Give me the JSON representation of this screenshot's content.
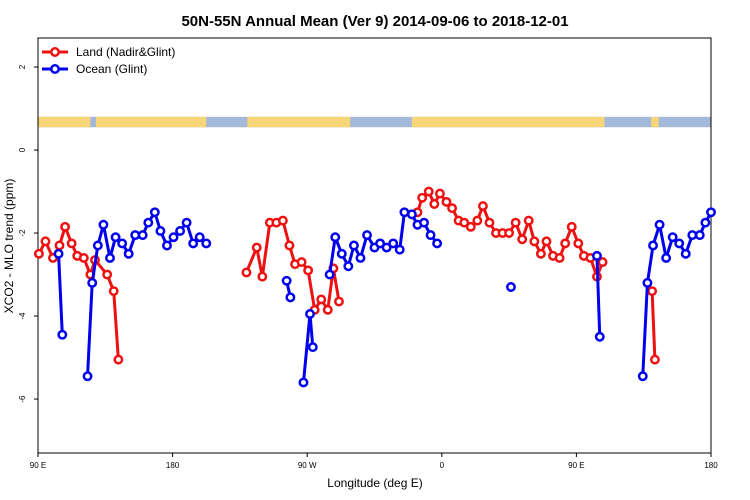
{
  "chart_data": {
    "type": "line",
    "title": "50N-55N Annual Mean (Ver 9)   2014-09-06 to 2018-12-01",
    "xlabel": "Longitude (deg E)",
    "ylabel": "XCO2 - MLO trend (ppm)",
    "xlim": [
      90,
      450
    ],
    "ylim": [
      -7.3,
      2.7
    ],
    "x_ticks": [
      90,
      162,
      234,
      306,
      378,
      450
    ],
    "x_tick_labels": [
      "90 E",
      "180",
      "90 W",
      "0",
      "90 E",
      "180"
    ],
    "y_ticks": [
      -6,
      -4,
      -2,
      0,
      2
    ],
    "y_tick_labels": [
      "-6",
      "-4",
      "-2",
      "0",
      "2"
    ],
    "legend_position": "top-left",
    "land_ocean_strip": {
      "y_range": [
        0.55,
        0.8
      ],
      "land_color": "#F8D678",
      "ocean_color": "#A4B8DA"
    },
    "series": [
      {
        "name": "Land (Nadir&Glint)",
        "color": "#EE1111",
        "segments": [
          [
            [
              90.5,
              -2.5
            ],
            [
              94,
              -2.2
            ],
            [
              98,
              -2.6
            ],
            [
              101.5,
              -2.3
            ],
            [
              104.5,
              -1.85
            ],
            [
              108,
              -2.25
            ],
            [
              111,
              -2.55
            ],
            [
              114.5,
              -2.6
            ],
            [
              118,
              -3.0
            ],
            [
              120.5,
              -2.65
            ],
            [
              127,
              -3.0
            ],
            [
              130.5,
              -3.4
            ],
            [
              133,
              -5.05
            ]
          ],
          [
            [
              201.5,
              -2.95
            ],
            [
              207,
              -2.35
            ],
            [
              210,
              -3.05
            ],
            [
              214,
              -1.75
            ],
            [
              217.5,
              -1.75
            ],
            [
              221,
              -1.7
            ],
            [
              224.5,
              -2.3
            ],
            [
              227.5,
              -2.75
            ],
            [
              231,
              -2.7
            ],
            [
              234.5,
              -2.9
            ],
            [
              238,
              -3.85
            ],
            [
              241.5,
              -3.6
            ],
            [
              245,
              -3.85
            ],
            [
              248,
              -2.85
            ],
            [
              251,
              -3.65
            ]
          ],
          [
            [
              293,
              -1.5
            ],
            [
              295.5,
              -1.15
            ],
            [
              299,
              -1.0
            ],
            [
              302,
              -1.3
            ],
            [
              305,
              -1.05
            ],
            [
              308.5,
              -1.25
            ],
            [
              311.5,
              -1.4
            ],
            [
              315,
              -1.7
            ],
            [
              318,
              -1.75
            ],
            [
              321.5,
              -1.85
            ],
            [
              325,
              -1.7
            ],
            [
              328,
              -1.35
            ],
            [
              331.5,
              -1.75
            ],
            [
              335,
              -2.0
            ],
            [
              338.5,
              -2.0
            ],
            [
              342,
              -2.0
            ],
            [
              345.5,
              -1.75
            ],
            [
              349,
              -2.15
            ],
            [
              352.5,
              -1.7
            ],
            [
              355.5,
              -2.2
            ],
            [
              359,
              -2.5
            ],
            [
              362,
              -2.2
            ],
            [
              365.5,
              -2.55
            ],
            [
              369,
              -2.6
            ],
            [
              372,
              -2.25
            ],
            [
              375.5,
              -1.85
            ],
            [
              379,
              -2.25
            ],
            [
              382,
              -2.55
            ],
            [
              385.5,
              -2.6
            ],
            [
              389,
              -3.05
            ],
            [
              392,
              -2.7
            ]
          ],
          [
            [
              418.5,
              -3.4
            ],
            [
              420,
              -5.05
            ]
          ]
        ]
      },
      {
        "name": "Ocean (Glint)",
        "color": "#0000EE",
        "segments": [
          [
            [
              101,
              -2.5
            ],
            [
              103,
              -4.45
            ]
          ],
          [
            [
              116.5,
              -5.45
            ],
            [
              119,
              -3.2
            ],
            [
              122,
              -2.3
            ],
            [
              125,
              -1.8
            ],
            [
              128.5,
              -2.6
            ],
            [
              131.5,
              -2.1
            ],
            [
              135,
              -2.25
            ],
            [
              138.5,
              -2.5
            ],
            [
              142,
              -2.05
            ],
            [
              146,
              -2.05
            ],
            [
              149,
              -1.75
            ],
            [
              152.5,
              -1.5
            ],
            [
              155.5,
              -1.95
            ],
            [
              159,
              -2.3
            ],
            [
              162.5,
              -2.1
            ],
            [
              166,
              -1.95
            ],
            [
              169.5,
              -1.75
            ],
            [
              173,
              -2.25
            ],
            [
              176.5,
              -2.1
            ],
            [
              180,
              -2.25
            ]
          ],
          [
            [
              223,
              -3.15
            ],
            [
              225,
              -3.55
            ]
          ],
          [
            [
              232,
              -5.6
            ],
            [
              235.5,
              -3.95
            ],
            [
              237,
              -4.75
            ]
          ],
          [
            [
              246,
              -3.0
            ],
            [
              249,
              -2.1
            ],
            [
              252.5,
              -2.5
            ],
            [
              256,
              -2.8
            ],
            [
              259,
              -2.3
            ],
            [
              262.5,
              -2.6
            ],
            [
              266,
              -2.05
            ],
            [
              270,
              -2.35
            ],
            [
              273,
              -2.25
            ],
            [
              276.5,
              -2.35
            ],
            [
              280,
              -2.25
            ],
            [
              283.5,
              -2.4
            ],
            [
              286,
              -1.5
            ],
            [
              290,
              -1.55
            ],
            [
              293,
              -1.8
            ],
            [
              296.5,
              -1.75
            ],
            [
              300,
              -2.05
            ],
            [
              303.5,
              -2.25
            ]
          ],
          [
            [
              343,
              -3.3
            ]
          ],
          [
            [
              389,
              -2.55
            ],
            [
              390.5,
              -4.5
            ]
          ],
          [
            [
              413.5,
              -5.45
            ],
            [
              416,
              -3.2
            ],
            [
              419,
              -2.3
            ],
            [
              422.5,
              -1.8
            ],
            [
              426,
              -2.6
            ],
            [
              429.5,
              -2.1
            ],
            [
              433,
              -2.25
            ],
            [
              436.5,
              -2.5
            ],
            [
              440,
              -2.05
            ],
            [
              444,
              -2.05
            ],
            [
              447,
              -1.75
            ],
            [
              450,
              -1.5
            ]
          ]
        ]
      }
    ]
  }
}
